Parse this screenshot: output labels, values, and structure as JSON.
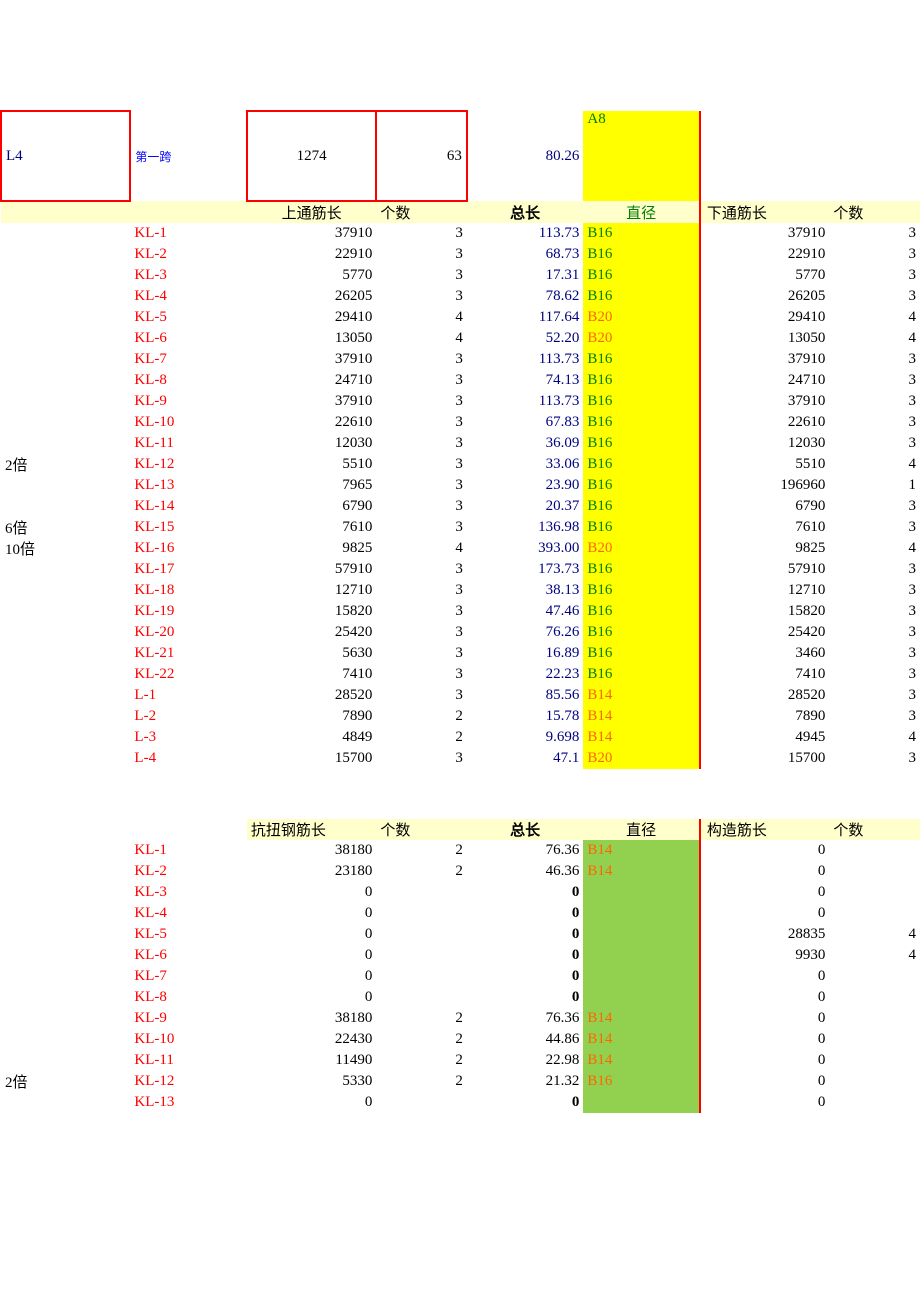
{
  "top": {
    "c1": "L4",
    "c2": "第一跨",
    "c3": "1274",
    "c4": "63",
    "c5": "80.26",
    "c6": "A8"
  },
  "t1_headers": {
    "h3": "上通筋长",
    "h4": "个数",
    "h5": "总长",
    "h6": "直径",
    "h7": "下通筋长",
    "h8": "个数"
  },
  "t1_rows": [
    {
      "a": "",
      "b": "KL-1",
      "c": "37910",
      "d": "3",
      "e": "113.73",
      "f": "B16",
      "fcolor": "green",
      "g": "37910",
      "h": "3"
    },
    {
      "a": "",
      "b": "KL-2",
      "c": "22910",
      "d": "3",
      "e": "68.73",
      "f": "B16",
      "fcolor": "green",
      "g": "22910",
      "h": "3"
    },
    {
      "a": "",
      "b": "KL-3",
      "c": "5770",
      "d": "3",
      "e": "17.31",
      "f": "B16",
      "fcolor": "green",
      "g": "5770",
      "h": "3"
    },
    {
      "a": "",
      "b": "KL-4",
      "c": "26205",
      "d": "3",
      "e": "78.62",
      "f": "B16",
      "fcolor": "green",
      "g": "26205",
      "h": "3"
    },
    {
      "a": "",
      "b": "KL-5",
      "c": "29410",
      "d": "4",
      "e": "117.64",
      "f": "B20",
      "fcolor": "orange",
      "g": "29410",
      "h": "4"
    },
    {
      "a": "",
      "b": "KL-6",
      "c": "13050",
      "d": "4",
      "e": "52.20",
      "f": "B20",
      "fcolor": "orange",
      "g": "13050",
      "h": "4"
    },
    {
      "a": "",
      "b": "KL-7",
      "c": "37910",
      "d": "3",
      "e": "113.73",
      "f": "B16",
      "fcolor": "green",
      "g": "37910",
      "h": "3"
    },
    {
      "a": "",
      "b": "KL-8",
      "c": "24710",
      "d": "3",
      "e": "74.13",
      "f": "B16",
      "fcolor": "green",
      "g": "24710",
      "h": "3"
    },
    {
      "a": "",
      "b": "KL-9",
      "c": "37910",
      "d": "3",
      "e": "113.73",
      "f": "B16",
      "fcolor": "green",
      "g": "37910",
      "h": "3"
    },
    {
      "a": "",
      "b": "KL-10",
      "c": "22610",
      "d": "3",
      "e": "67.83",
      "f": "B16",
      "fcolor": "green",
      "g": "22610",
      "h": "3"
    },
    {
      "a": "",
      "b": "KL-11",
      "c": "12030",
      "d": "3",
      "e": "36.09",
      "f": "B16",
      "fcolor": "green",
      "g": "12030",
      "h": "3"
    },
    {
      "a": "2倍",
      "b": "KL-12",
      "c": "5510",
      "d": "3",
      "e": "33.06",
      "f": "B16",
      "fcolor": "green",
      "g": "5510",
      "h": "4"
    },
    {
      "a": "",
      "b": "KL-13",
      "c": "7965",
      "d": "3",
      "e": "23.90",
      "f": "B16",
      "fcolor": "green",
      "g": "196960",
      "h": "1"
    },
    {
      "a": "",
      "b": "KL-14",
      "c": "6790",
      "d": "3",
      "e": "20.37",
      "f": "B16",
      "fcolor": "green",
      "g": "6790",
      "h": "3"
    },
    {
      "a": "6倍",
      "b": "KL-15",
      "c": "7610",
      "d": "3",
      "e": "136.98",
      "f": "B16",
      "fcolor": "green",
      "g": "7610",
      "h": "3"
    },
    {
      "a": "10倍",
      "b": "KL-16",
      "c": "9825",
      "d": "4",
      "e": "393.00",
      "f": "B20",
      "fcolor": "orange",
      "g": "9825",
      "h": "4"
    },
    {
      "a": "",
      "b": "KL-17",
      "c": "57910",
      "d": "3",
      "e": "173.73",
      "f": "B16",
      "fcolor": "green",
      "g": "57910",
      "h": "3"
    },
    {
      "a": "",
      "b": "KL-18",
      "c": "12710",
      "d": "3",
      "e": "38.13",
      "f": "B16",
      "fcolor": "green",
      "g": "12710",
      "h": "3"
    },
    {
      "a": "",
      "b": "KL-19",
      "c": "15820",
      "d": "3",
      "e": "47.46",
      "f": "B16",
      "fcolor": "green",
      "g": "15820",
      "h": "3"
    },
    {
      "a": "",
      "b": "KL-20",
      "c": "25420",
      "d": "3",
      "e": "76.26",
      "f": "B16",
      "fcolor": "green",
      "g": "25420",
      "h": "3"
    },
    {
      "a": "",
      "b": "KL-21",
      "c": "5630",
      "d": "3",
      "e": "16.89",
      "f": "B16",
      "fcolor": "green",
      "g": "3460",
      "h": "3"
    },
    {
      "a": "",
      "b": "KL-22",
      "c": "7410",
      "d": "3",
      "e": "22.23",
      "f": "B16",
      "fcolor": "green",
      "g": "7410",
      "h": "3"
    },
    {
      "a": "",
      "b": "L-1",
      "c": "28520",
      "d": "3",
      "e": "85.56",
      "f": "B14",
      "fcolor": "orange",
      "g": "28520",
      "h": "3"
    },
    {
      "a": "",
      "b": "L-2",
      "c": "7890",
      "d": "2",
      "e": "15.78",
      "f": "B14",
      "fcolor": "orange",
      "g": "7890",
      "h": "3"
    },
    {
      "a": "",
      "b": "L-3",
      "c": "4849",
      "d": "2",
      "e": "9.698",
      "f": "B14",
      "fcolor": "orange",
      "g": "4945",
      "h": "4"
    },
    {
      "a": "",
      "b": "L-4",
      "c": "15700",
      "d": "3",
      "e": "47.1",
      "f": "B20",
      "fcolor": "orange",
      "g": "15700",
      "h": "3"
    }
  ],
  "t2_headers": {
    "h3": "抗扭钢筋长",
    "h4": "个数",
    "h5": "总长",
    "h6": "直径",
    "h7": "构造筋长",
    "h8": "个数"
  },
  "t2_rows": [
    {
      "a": "",
      "b": "KL-1",
      "c": "38180",
      "d": "2",
      "e": "76.36",
      "f": "B14",
      "fbg": "green",
      "fcolor": "orange",
      "g": "0",
      "h": ""
    },
    {
      "a": "",
      "b": "KL-2",
      "c": "23180",
      "d": "2",
      "e": "46.36",
      "f": "B14",
      "fbg": "green",
      "fcolor": "orange",
      "g": "0",
      "h": ""
    },
    {
      "a": "",
      "b": "KL-3",
      "c": "0",
      "d": "",
      "e": "0",
      "f": "",
      "fbg": "green",
      "fcolor": "",
      "g": "0",
      "h": ""
    },
    {
      "a": "",
      "b": "KL-4",
      "c": "0",
      "d": "",
      "e": "0",
      "f": "",
      "fbg": "green",
      "fcolor": "",
      "g": "0",
      "h": ""
    },
    {
      "a": "",
      "b": "KL-5",
      "c": "0",
      "d": "",
      "e": "0",
      "f": "",
      "fbg": "green",
      "fcolor": "",
      "g": "28835",
      "h": "4"
    },
    {
      "a": "",
      "b": "KL-6",
      "c": "0",
      "d": "",
      "e": "0",
      "f": "",
      "fbg": "green",
      "fcolor": "",
      "g": "9930",
      "h": "4"
    },
    {
      "a": "",
      "b": "KL-7",
      "c": "0",
      "d": "",
      "e": "0",
      "f": "",
      "fbg": "green",
      "fcolor": "",
      "g": "0",
      "h": ""
    },
    {
      "a": "",
      "b": "KL-8",
      "c": "0",
      "d": "",
      "e": "0",
      "f": "",
      "fbg": "green",
      "fcolor": "",
      "g": "0",
      "h": ""
    },
    {
      "a": "",
      "b": "KL-9",
      "c": "38180",
      "d": "2",
      "e": "76.36",
      "f": "B14",
      "fbg": "green",
      "fcolor": "orange",
      "g": "0",
      "h": ""
    },
    {
      "a": "",
      "b": "KL-10",
      "c": "22430",
      "d": "2",
      "e": "44.86",
      "f": "B14",
      "fbg": "green",
      "fcolor": "orange",
      "g": "0",
      "h": ""
    },
    {
      "a": "",
      "b": "KL-11",
      "c": "11490",
      "d": "2",
      "e": "22.98",
      "f": "B14",
      "fbg": "green",
      "fcolor": "orange",
      "g": "0",
      "h": ""
    },
    {
      "a": "2倍",
      "b": "KL-12",
      "c": "5330",
      "d": "2",
      "e": "21.32",
      "f": "B16",
      "fbg": "green",
      "fcolor": "orange",
      "g": "0",
      "h": ""
    },
    {
      "a": "",
      "b": "KL-13",
      "c": "0",
      "d": "",
      "e": "0",
      "f": "",
      "fbg": "green",
      "fcolor": "",
      "g": "0",
      "h": ""
    }
  ],
  "colors": {
    "yellow": "#ffff00",
    "lightyellow": "#ffffcc",
    "greenbg": "#92d050",
    "red": "#ff0000",
    "blue": "#0000ff",
    "green": "#008000",
    "orange": "#ff6600",
    "navy": "#000080"
  }
}
